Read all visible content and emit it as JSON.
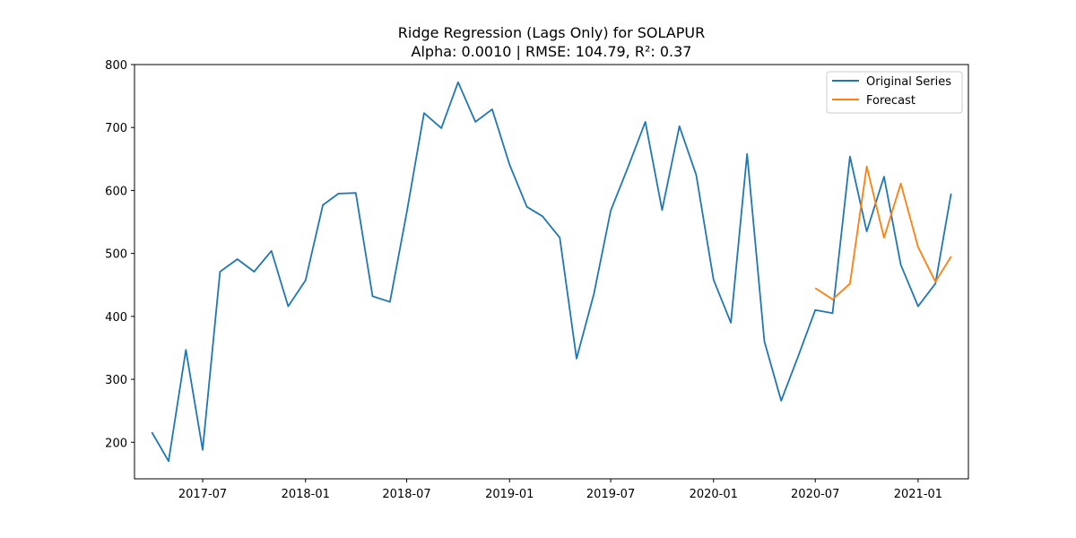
{
  "chart_data": {
    "type": "line",
    "title": "Ridge Regression (Lags Only) for SOLAPUR",
    "subtitle": "Alpha: 0.0010 | RMSE: 104.79, R²: 0.37",
    "xlabel": "",
    "ylabel": "",
    "ylim": [
      142,
      800
    ],
    "xlim": [
      "2017-03-01",
      "2021-04-01"
    ],
    "grid": false,
    "legend_position": "top-right",
    "x_ticks": [
      "2017-07",
      "2018-01",
      "2018-07",
      "2019-01",
      "2019-07",
      "2020-01",
      "2020-07",
      "2021-01"
    ],
    "y_ticks": [
      200,
      300,
      400,
      500,
      600,
      700,
      800
    ],
    "series": [
      {
        "name": "Original Series",
        "color": "#1f77b4",
        "x": [
          "2017-04",
          "2017-05",
          "2017-06",
          "2017-07",
          "2017-08",
          "2017-09",
          "2017-10",
          "2017-11",
          "2017-12",
          "2018-01",
          "2018-02",
          "2018-03",
          "2018-04",
          "2018-05",
          "2018-06",
          "2018-07",
          "2018-08",
          "2018-09",
          "2018-10",
          "2018-11",
          "2018-12",
          "2019-01",
          "2019-02",
          "2019-03",
          "2019-04",
          "2019-05",
          "2019-06",
          "2019-07",
          "2019-08",
          "2019-09",
          "2019-10",
          "2019-11",
          "2019-12",
          "2020-01",
          "2020-02",
          "2020-03",
          "2020-04",
          "2020-05",
          "2020-06",
          "2020-07",
          "2020-08",
          "2020-09",
          "2020-10",
          "2020-11",
          "2020-12",
          "2021-01",
          "2021-02",
          "2021-03"
        ],
        "values": [
          216,
          170,
          347,
          188,
          471,
          491,
          471,
          504,
          416,
          457,
          577,
          595,
          596,
          432,
          423,
          565,
          723,
          699,
          772,
          709,
          729,
          641,
          574,
          559,
          525,
          333,
          436,
          568,
          637,
          709,
          569,
          702,
          625,
          458,
          390,
          658,
          360,
          266,
          338,
          410,
          405,
          654,
          535,
          622,
          482,
          416,
          452,
          595
        ]
      },
      {
        "name": "Forecast",
        "color": "#ff7f0e",
        "x": [
          "2020-07",
          "2020-08",
          "2020-09",
          "2020-10",
          "2020-11",
          "2020-12",
          "2021-01",
          "2021-02",
          "2021-03"
        ],
        "values": [
          445,
          427,
          452,
          638,
          525,
          611,
          510,
          455,
          495
        ]
      }
    ]
  }
}
